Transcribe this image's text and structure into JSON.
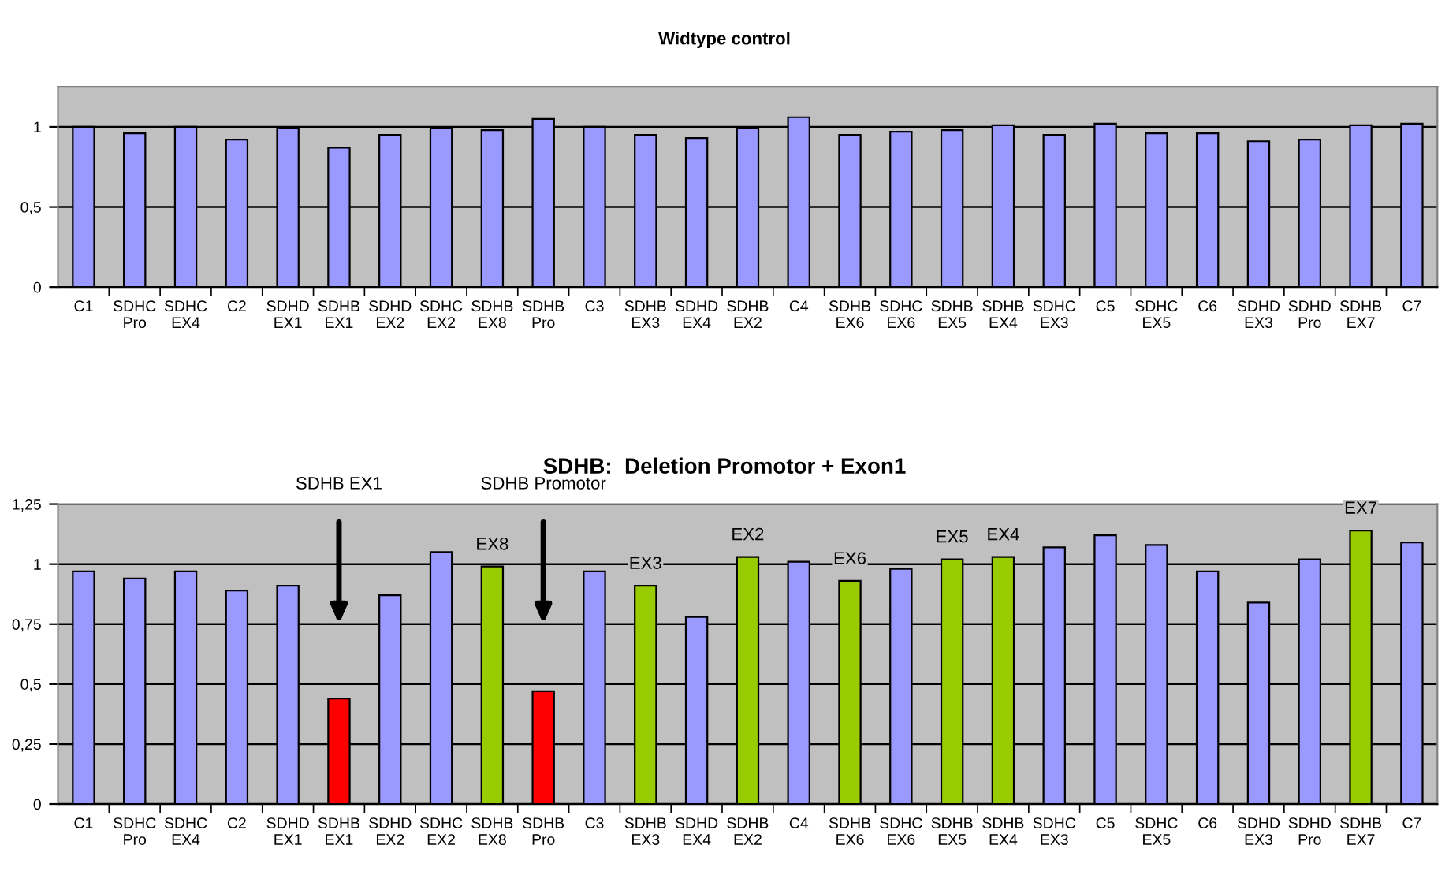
{
  "chart_data": [
    {
      "type": "bar",
      "title": "Widtype control",
      "categories": [
        "C1",
        "SDHC Pro",
        "SDHC EX4",
        "C2",
        "SDHD EX1",
        "SDHB EX1",
        "SDHD EX2",
        "SDHC EX2",
        "SDHB EX8",
        "SDHB Pro",
        "C3",
        "SDHB EX3",
        "SDHD EX4",
        "SDHB EX2",
        "C4",
        "SDHB EX6",
        "SDHC EX6",
        "SDHB EX5",
        "SDHB EX4",
        "SDHC EX3",
        "C5",
        "SDHC EX5",
        "C6",
        "SDHD EX3",
        "SDHD Pro",
        "SDHB EX7",
        "C7"
      ],
      "values": [
        1.0,
        0.96,
        1.0,
        0.92,
        0.99,
        0.87,
        0.95,
        0.99,
        0.98,
        1.05,
        1.0,
        0.95,
        0.93,
        0.99,
        1.06,
        0.95,
        0.97,
        0.98,
        1.01,
        0.95,
        1.02,
        0.96,
        0.96,
        0.91,
        0.92,
        1.01,
        1.02
      ],
      "colors": [
        "#9999ff",
        "#9999ff",
        "#9999ff",
        "#9999ff",
        "#9999ff",
        "#9999ff",
        "#9999ff",
        "#9999ff",
        "#9999ff",
        "#9999ff",
        "#9999ff",
        "#9999ff",
        "#9999ff",
        "#9999ff",
        "#9999ff",
        "#9999ff",
        "#9999ff",
        "#9999ff",
        "#9999ff",
        "#9999ff",
        "#9999ff",
        "#9999ff",
        "#9999ff",
        "#9999ff",
        "#9999ff",
        "#9999ff",
        "#9999ff"
      ],
      "ylim": [
        0,
        1.25
      ],
      "yticks": [
        0,
        {
          "value": 0.5,
          "label": "0,5"
        },
        1
      ],
      "grid": "y"
    },
    {
      "type": "bar",
      "title": "SDHB:  Deletion Promotor + Exon1",
      "categories": [
        "C1",
        "SDHC Pro",
        "SDHC EX4",
        "C2",
        "SDHD EX1",
        "SDHB EX1",
        "SDHD EX2",
        "SDHC EX2",
        "SDHB EX8",
        "SDHB Pro",
        "C3",
        "SDHB EX3",
        "SDHD EX4",
        "SDHB EX2",
        "C4",
        "SDHB EX6",
        "SDHC EX6",
        "SDHB EX5",
        "SDHB EX4",
        "SDHC EX3",
        "C5",
        "SDHC EX5",
        "C6",
        "SDHD EX3",
        "SDHD Pro",
        "SDHB EX7",
        "C7"
      ],
      "values": [
        0.97,
        0.94,
        0.97,
        0.89,
        0.91,
        0.44,
        0.87,
        1.05,
        0.99,
        0.47,
        0.97,
        0.91,
        0.78,
        1.03,
        1.01,
        0.93,
        0.98,
        1.02,
        1.03,
        1.07,
        1.12,
        1.08,
        0.97,
        0.84,
        1.02,
        1.14,
        1.09
      ],
      "colors": [
        "#9999ff",
        "#9999ff",
        "#9999ff",
        "#9999ff",
        "#9999ff",
        "#ff0000",
        "#9999ff",
        "#9999ff",
        "#99cc00",
        "#ff0000",
        "#9999ff",
        "#99cc00",
        "#9999ff",
        "#99cc00",
        "#9999ff",
        "#99cc00",
        "#9999ff",
        "#99cc00",
        "#99cc00",
        "#9999ff",
        "#9999ff",
        "#9999ff",
        "#9999ff",
        "#9999ff",
        "#9999ff",
        "#99cc00",
        "#9999ff"
      ],
      "ylim": [
        0,
        1.25
      ],
      "yticks": [
        0,
        {
          "value": 0.25,
          "label": "0,25"
        },
        {
          "value": 0.5,
          "label": "0,5"
        },
        {
          "value": 0.75,
          "label": "0,75"
        },
        1,
        {
          "value": 1.25,
          "label": "1,25"
        }
      ],
      "grid": "y",
      "annotations": [
        "SDHB EX1",
        "SDHB Promotor",
        {
          "text": "EX8",
          "x": "SDHB EX8",
          "y": 0.99
        },
        {
          "text": "EX3",
          "x": "SDHB EX3",
          "y": 0.91
        },
        {
          "text": "EX2",
          "x": "SDHB EX2",
          "y": 1.03
        },
        {
          "text": "EX6",
          "x": "SDHB EX6",
          "y": 0.93
        },
        {
          "text": "EX5",
          "x": "SDHB EX5",
          "y": 1.02
        },
        {
          "text": "EX4",
          "x": "SDHB EX4",
          "y": 1.03
        },
        {
          "text": "EX7",
          "x": "SDHB EX7",
          "y": 1.14
        }
      ]
    }
  ]
}
